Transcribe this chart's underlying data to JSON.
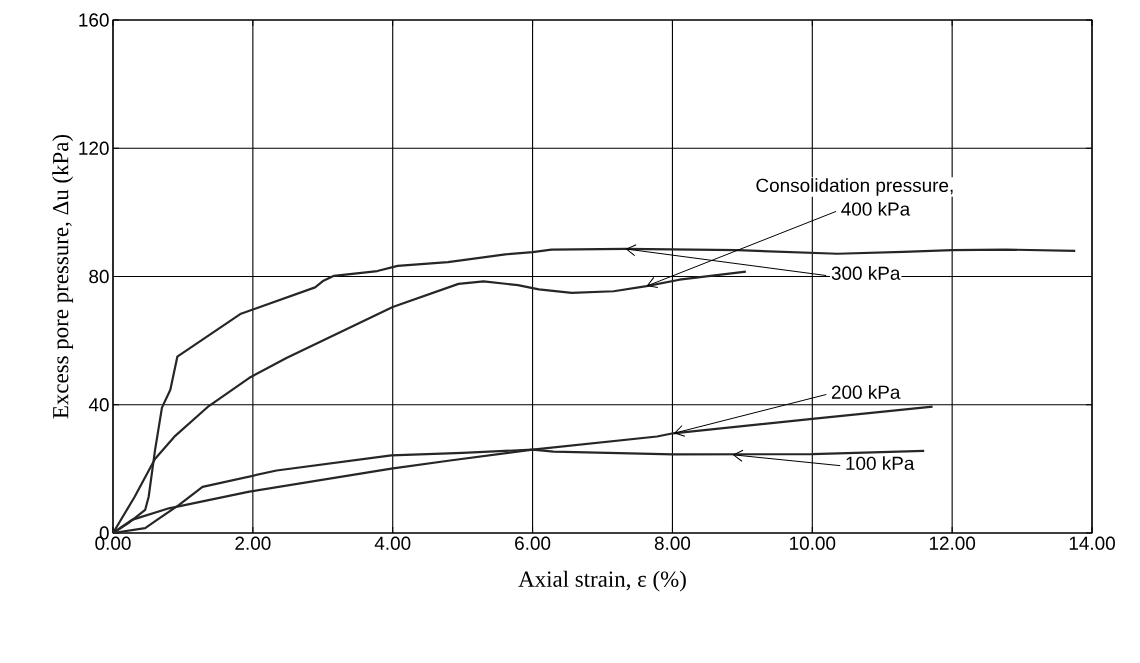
{
  "chart_data": {
    "type": "line",
    "xlabel": "Axial strain, ε (%)",
    "ylabel": "Excess pore pressure, Δu (kPa)",
    "xlim": [
      0,
      14
    ],
    "ylim": [
      0,
      160
    ],
    "xticks": [
      {
        "value": 0,
        "label": "0.00"
      },
      {
        "value": 2,
        "label": "2.00"
      },
      {
        "value": 4,
        "label": "4.00"
      },
      {
        "value": 6,
        "label": "6.00"
      },
      {
        "value": 8,
        "label": "8.00"
      },
      {
        "value": 10,
        "label": "10.00"
      },
      {
        "value": 12,
        "label": "12.00"
      },
      {
        "value": 14,
        "label": "14.00"
      }
    ],
    "yticks": [
      0,
      40,
      80,
      120,
      160
    ],
    "grid": true,
    "series": [
      {
        "color": "#262626",
        "x": [
          0,
          0.31,
          0.6,
          0.89,
          1.37,
          1.95,
          2.48,
          4.0,
          4.94,
          5.3,
          5.79,
          6.09,
          6.56,
          7.16,
          7.63,
          8.1,
          9.05
        ],
        "values": [
          0,
          11.3,
          23.1,
          30.3,
          39.6,
          48.4,
          54.6,
          70.5,
          77.7,
          78.5,
          77.3,
          76.0,
          74.9,
          75.4,
          77.0,
          79.0,
          81.5
        ]
      },
      {
        "color": "#262626",
        "x": [
          0,
          0.22,
          0.46,
          0.51,
          0.6,
          0.7,
          0.82,
          0.92,
          1.83,
          2.89,
          3.01,
          3.16,
          3.78,
          4.07,
          4.79,
          5.61,
          6.0,
          6.27,
          7.33,
          8.93,
          10.36,
          11.3,
          12.0,
          12.77,
          13.76
        ],
        "values": [
          0,
          3.1,
          7.2,
          11.3,
          25.7,
          39.1,
          44.7,
          55.0,
          68.4,
          76.6,
          78.7,
          80.2,
          81.7,
          83.3,
          84.5,
          86.9,
          87.6,
          88.4,
          88.6,
          88.2,
          87.1,
          87.7,
          88.2,
          88.4,
          88.0
        ]
      },
      {
        "color": "#262626",
        "x": [
          0,
          0.27,
          0.8,
          1.95,
          3.98,
          4.82,
          6.0,
          7.78,
          8.01,
          10.0,
          11.72
        ],
        "values": [
          0,
          4.1,
          7.7,
          12.9,
          20.1,
          22.6,
          26.0,
          30.1,
          31.1,
          35.6,
          39.4
        ]
      },
      {
        "color": "#262626",
        "x": [
          0,
          0.46,
          0.63,
          0.94,
          1.28,
          2.34,
          3.98,
          5.0,
          6.0,
          6.3,
          8.01,
          10.0,
          11.6
        ],
        "values": [
          0,
          1.5,
          4.1,
          8.7,
          14.4,
          19.5,
          24.2,
          25.0,
          26.0,
          25.4,
          24.5,
          24.6,
          25.6
        ]
      }
    ],
    "annotations": [
      "Consolidation pressure,",
      {
        "text": "400 kPa",
        "x": 7.63,
        "y": 77.0
      },
      {
        "text": "300 kPa",
        "x": 7.33,
        "y": 88.6
      },
      {
        "text": "200 kPa",
        "x": 8.02,
        "y": 31.1
      },
      {
        "text": "100 kPa",
        "x": 8.86,
        "y": 24.4
      }
    ]
  }
}
